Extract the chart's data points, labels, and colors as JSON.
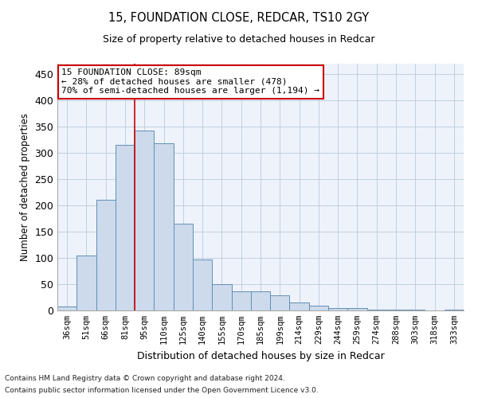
{
  "title1": "15, FOUNDATION CLOSE, REDCAR, TS10 2GY",
  "title2": "Size of property relative to detached houses in Redcar",
  "xlabel": "Distribution of detached houses by size in Redcar",
  "ylabel": "Number of detached properties",
  "categories": [
    "36sqm",
    "51sqm",
    "66sqm",
    "81sqm",
    "95sqm",
    "110sqm",
    "125sqm",
    "140sqm",
    "155sqm",
    "170sqm",
    "185sqm",
    "199sqm",
    "214sqm",
    "229sqm",
    "244sqm",
    "259sqm",
    "274sqm",
    "288sqm",
    "303sqm",
    "318sqm",
    "333sqm"
  ],
  "values": [
    7,
    105,
    210,
    315,
    343,
    318,
    165,
    97,
    50,
    36,
    36,
    29,
    15,
    9,
    5,
    4,
    2,
    1,
    1,
    0,
    1
  ],
  "bar_color": "#ccdaeb",
  "bar_edge_color": "#6090b8",
  "vline_x": 3.5,
  "annotation_line1": "15 FOUNDATION CLOSE: 89sqm",
  "annotation_line2": "← 28% of detached houses are smaller (478)",
  "annotation_line3": "70% of semi-detached houses are larger (1,194) →",
  "annotation_box_color": "#ffffff",
  "annotation_box_edge": "#cc0000",
  "footnote1": "Contains HM Land Registry data © Crown copyright and database right 2024.",
  "footnote2": "Contains public sector information licensed under the Open Government Licence v3.0.",
  "ylim": [
    0,
    470
  ],
  "yticks": [
    0,
    50,
    100,
    150,
    200,
    250,
    300,
    350,
    400,
    450
  ],
  "grid_color": "#c0cfdf",
  "background_color": "#eef2fb",
  "vline_color": "#cc0000",
  "title1_fontsize": 10.5,
  "title2_fontsize": 9,
  "ylabel_fontsize": 8.5,
  "xlabel_fontsize": 9,
  "annot_fontsize": 8,
  "tick_fontsize": 7.5
}
